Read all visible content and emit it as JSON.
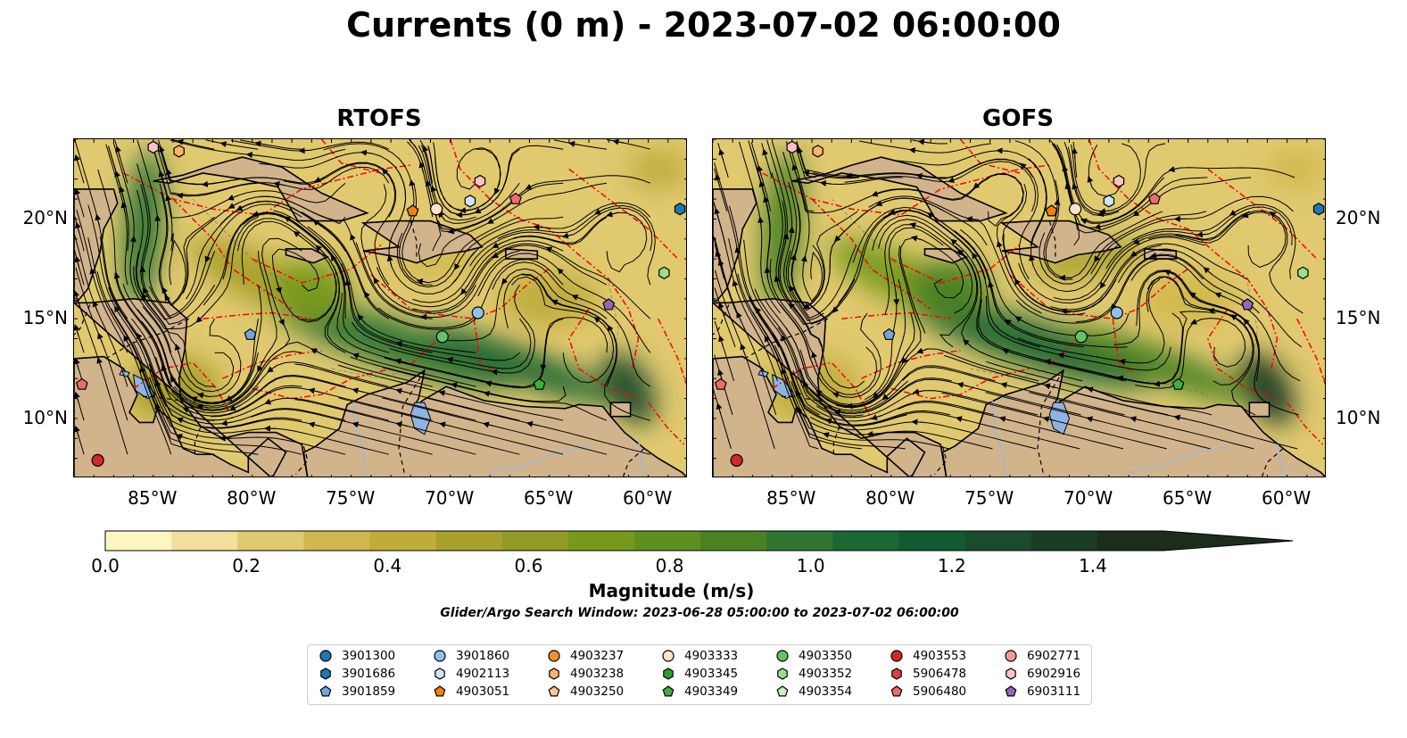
{
  "figure": {
    "title": "Currents (0 m) - 2023-07-02 06:00:00"
  },
  "panels": [
    {
      "name": "RTOFS"
    },
    {
      "name": "GOFS"
    }
  ],
  "map": {
    "lon_range": [
      -89,
      -58
    ],
    "lat_range": [
      7,
      24
    ],
    "lon_ticks": [
      "85°W",
      "80°W",
      "75°W",
      "70°W",
      "65°W",
      "60°W"
    ],
    "lat_ticks": [
      "20°N",
      "15°N",
      "10°N"
    ],
    "land_color": "#d2b48c",
    "lake_color": "#8fb4e3",
    "eez_line_color": "#ff0000"
  },
  "colorbar": {
    "label": "Magnitude (m/s)",
    "ticks": [
      "0.0",
      "0.2",
      "0.4",
      "0.6",
      "0.8",
      "1.0",
      "1.2",
      "1.4"
    ],
    "range": [
      0,
      1.5
    ],
    "extend": "max",
    "colors": [
      "#fdf6c3",
      "#f0e09c",
      "#e1c970",
      "#d1b84e",
      "#bfac3b",
      "#a8a02d",
      "#8f9b23",
      "#779a1e",
      "#5f8f1f",
      "#4a8123",
      "#2f7531",
      "#1b6734",
      "#145a31",
      "#1a4b2c",
      "#1c3d25",
      "#1b2e1b"
    ]
  },
  "search_window": "Glider/Argo Search Window: 2023-06-28 05:00:00 to 2023-07-02 06:00:00",
  "legend": [
    {
      "label": "3901300",
      "color": "#1f77b4",
      "marker": "circle"
    },
    {
      "label": "3901686",
      "color": "#1f77b4",
      "marker": "hexagon"
    },
    {
      "label": "3901859",
      "color": "#6fa8dc",
      "marker": "pentagon"
    },
    {
      "label": "3901860",
      "color": "#8ec1ea",
      "marker": "circle"
    },
    {
      "label": "4902113",
      "color": "#cfe5f7",
      "marker": "hexagon"
    },
    {
      "label": "4903051",
      "color": "#f57f0e",
      "marker": "pentagon"
    },
    {
      "label": "4903237",
      "color": "#f5902e",
      "marker": "circle"
    },
    {
      "label": "4903238",
      "color": "#fdb36b",
      "marker": "hexagon"
    },
    {
      "label": "4903250",
      "color": "#fdc894",
      "marker": "pentagon"
    },
    {
      "label": "4903333",
      "color": "#fde3c8",
      "marker": "circle"
    },
    {
      "label": "4903345",
      "color": "#2ca02c",
      "marker": "hexagon"
    },
    {
      "label": "4903349",
      "color": "#3fae3f",
      "marker": "pentagon"
    },
    {
      "label": "4903350",
      "color": "#66c266",
      "marker": "circle"
    },
    {
      "label": "4903352",
      "color": "#98df8a",
      "marker": "hexagon"
    },
    {
      "label": "4903354",
      "color": "#c9f0c0",
      "marker": "pentagon"
    },
    {
      "label": "4903553",
      "color": "#d62728",
      "marker": "circle"
    },
    {
      "label": "5906478",
      "color": "#e0403f",
      "marker": "hexagon"
    },
    {
      "label": "5906480",
      "color": "#ee6b6b",
      "marker": "pentagon"
    },
    {
      "label": "6902771",
      "color": "#f29a9a",
      "marker": "circle"
    },
    {
      "label": "6902916",
      "color": "#f8c4c4",
      "marker": "hexagon"
    },
    {
      "label": "6903111",
      "color": "#9467bd",
      "marker": "pentagon"
    }
  ],
  "floats": [
    {
      "id": "3901686",
      "lon": -58.4,
      "lat": 20.5
    },
    {
      "id": "4903051",
      "lon": -71.9,
      "lat": 20.4
    },
    {
      "id": "4903333",
      "lon": -70.7,
      "lat": 20.5
    },
    {
      "id": "4902113",
      "lon": -69.0,
      "lat": 20.9
    },
    {
      "id": "6902916",
      "lon": -68.5,
      "lat": 21.9
    },
    {
      "id": "5906480",
      "lon": -66.7,
      "lat": 21.0
    },
    {
      "id": "4903352",
      "lon": -59.2,
      "lat": 17.3
    },
    {
      "id": "6903111",
      "lon": -62.0,
      "lat": 15.7
    },
    {
      "id": "3901860",
      "lon": -68.6,
      "lat": 15.3
    },
    {
      "id": "4903350",
      "lon": -70.4,
      "lat": 14.1
    },
    {
      "id": "4903349",
      "lon": -65.5,
      "lat": 11.7
    },
    {
      "id": "3901859",
      "lon": -80.1,
      "lat": 14.2
    },
    {
      "id": "5906480",
      "lon": -88.6,
      "lat": 11.7
    },
    {
      "id": "4903553",
      "lon": -87.8,
      "lat": 7.9
    },
    {
      "id": "6902916",
      "lon": -85.0,
      "lat": 23.6
    },
    {
      "id": "4903238",
      "lon": -83.7,
      "lat": 23.4
    }
  ]
}
